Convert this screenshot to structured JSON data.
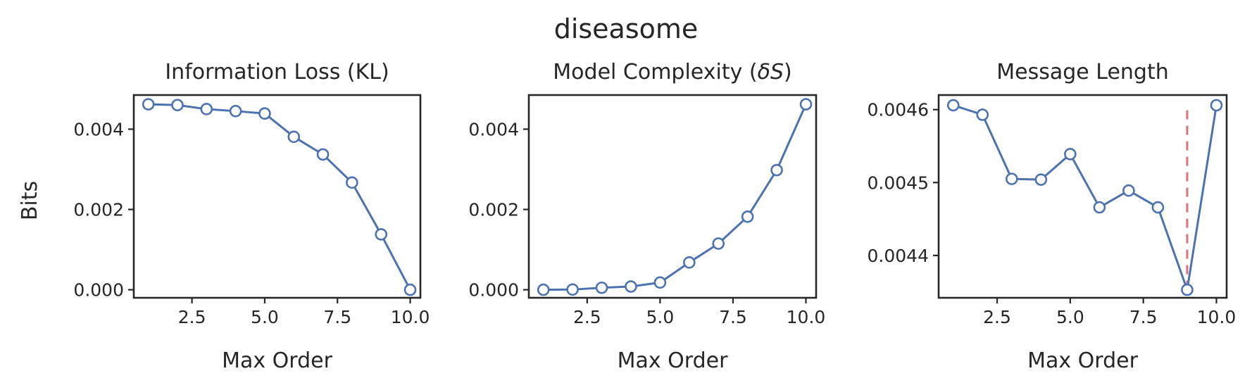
{
  "figure": {
    "title": "diseasome",
    "colors": {
      "series": "#4c72b0",
      "optimum": "#dd8452",
      "optimum_line": "#d9757a"
    }
  },
  "chart_data": [
    {
      "type": "line",
      "title": "Information Loss (KL)",
      "xlabel": "Max Order",
      "ylabel": "Bits",
      "x": [
        1,
        2,
        3,
        4,
        5,
        6,
        7,
        8,
        9,
        10
      ],
      "series": [
        {
          "values": [
            0.00462,
            0.0046,
            0.0045,
            0.00445,
            0.00439,
            0.00381,
            0.00337,
            0.00267,
            0.00138,
            0.0
          ]
        }
      ],
      "xlim": [
        0.5,
        10.35
      ],
      "ylim": [
        -0.0002,
        0.00485
      ],
      "xticks": [
        2.5,
        5.0,
        7.5,
        10.0
      ],
      "xtick_labels": [
        "2.5",
        "5.0",
        "7.5",
        "10.0"
      ],
      "yticks": [
        0.0,
        0.002,
        0.004
      ],
      "ytick_labels": [
        "0.000",
        "0.002",
        "0.004"
      ],
      "grid": false,
      "marker": "open circle"
    },
    {
      "type": "line",
      "title": "Model Complexity (δS)",
      "title_plain": "Model Complexity (",
      "title_delta": "δ",
      "title_S": "S",
      "title_close": ")",
      "xlabel": "Max Order",
      "ylabel": "",
      "x": [
        1,
        2,
        3,
        4,
        5,
        6,
        7,
        8,
        9,
        10
      ],
      "series": [
        {
          "values": [
            0.0,
            5e-06,
            5e-05,
            8e-05,
            0.00018,
            0.00068,
            0.00115,
            0.00182,
            0.00298,
            0.00462
          ]
        }
      ],
      "xlim": [
        0.5,
        10.35
      ],
      "ylim": [
        -0.0002,
        0.00485
      ],
      "xticks": [
        2.5,
        5.0,
        7.5,
        10.0
      ],
      "xtick_labels": [
        "2.5",
        "5.0",
        "7.5",
        "10.0"
      ],
      "yticks": [
        0.0,
        0.002,
        0.004
      ],
      "ytick_labels": [
        "0.000",
        "0.002",
        "0.004"
      ],
      "grid": false,
      "marker": "open circle"
    },
    {
      "type": "line",
      "title": "Message Length",
      "xlabel": "Max Order",
      "ylabel": "",
      "x": [
        1,
        2,
        3,
        4,
        5,
        6,
        7,
        8,
        9,
        10
      ],
      "series": [
        {
          "values": [
            0.004606,
            0.004593,
            0.004505,
            0.004504,
            0.004539,
            0.004466,
            0.004489,
            0.004466,
            0.004353,
            0.004606
          ]
        }
      ],
      "xlim": [
        0.5,
        10.35
      ],
      "ylim": [
        0.004342,
        0.00462
      ],
      "xticks": [
        2.5,
        5.0,
        7.5,
        10.0
      ],
      "xtick_labels": [
        "2.5",
        "5.0",
        "7.5",
        "10.0"
      ],
      "yticks": [
        0.0044,
        0.0045,
        0.0046
      ],
      "ytick_labels": [
        "0.0044",
        "0.0045",
        "0.0046"
      ],
      "grid": false,
      "marker": "open circle",
      "optimum": {
        "x": 9,
        "y_from": 0.004353,
        "y_to": 0.004602,
        "style": "dashed"
      }
    }
  ]
}
